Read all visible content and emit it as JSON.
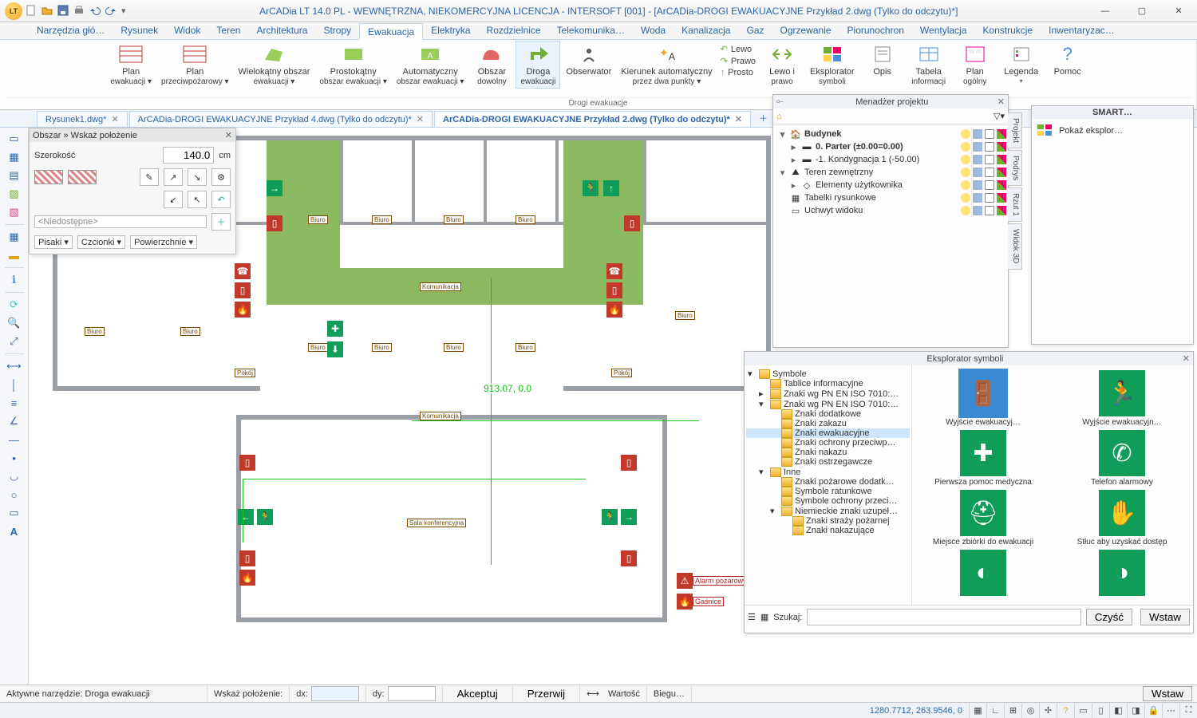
{
  "titlebar": {
    "title": "ArCADia LT 14.0 PL - WEWNĘTRZNA, NIEKOMERCYJNA LICENCJA - INTERSOFT [001] - [ArCADia-DROGI EWAKUACYJNE Przykład 2.dwg (Tylko do odczytu)*]"
  },
  "ribbon_tabs": [
    "Narzędzia głó…",
    "Rysunek",
    "Widok",
    "Teren",
    "Architektura",
    "Stropy",
    "Ewakuacja",
    "Elektryka",
    "Rozdzielnice",
    "Telekomunika…",
    "Woda",
    "Kanalizacja",
    "Gaz",
    "Ogrzewanie",
    "Piorunochron",
    "Wentylacja",
    "Konstrukcje",
    "Inwentaryzac…"
  ],
  "ribbon_active": "Ewakuacja",
  "ribbon": {
    "group_label": "Drogi ewakuacje",
    "buttons": {
      "plan_ewak": {
        "l1": "Plan",
        "l2": "ewakuacji ▾"
      },
      "plan_ppoz": {
        "l1": "Plan",
        "l2": "przeciwpożarowy ▾"
      },
      "wielok": {
        "l1": "Wielokątny obszar",
        "l2": "ewakuacji ▾"
      },
      "prostok": {
        "l1": "Prostokątny",
        "l2": "obszar ewakuacji ▾"
      },
      "auto": {
        "l1": "Automatyczny",
        "l2": "obszar ewakuacji ▾"
      },
      "dowolny": {
        "l1": "Obszar",
        "l2": "dowolny"
      },
      "droga": {
        "l1": "Droga",
        "l2": "ewakuacji"
      },
      "obser": {
        "l1": "Obserwator",
        "l2": ""
      },
      "kierunek": {
        "l1": "Kierunek automatyczny",
        "l2": "przez dwa punkty ▾"
      },
      "lewo": "Lewo",
      "prawo": "Prawo",
      "prosto": "Prosto",
      "lewoiprawo": {
        "l1": "Lewo i",
        "l2": "prawo"
      },
      "ekspl": {
        "l1": "Eksplorator",
        "l2": "symboli"
      },
      "opis": "Opis",
      "tabela": {
        "l1": "Tabela",
        "l2": "informacji"
      },
      "plan_og": {
        "l1": "Plan",
        "l2": "ogólny"
      },
      "legenda": {
        "l1": "Legenda",
        "l2": "▾"
      },
      "pomoc": "Pomoc"
    }
  },
  "doc_tabs": [
    {
      "label": "Rysunek1.dwg*",
      "active": false,
      "closable": true
    },
    {
      "label": "ArCADia-DROGI EWAKUACYJNE Przykład 4.dwg (Tylko do odczytu)*",
      "active": false,
      "closable": true
    },
    {
      "label": "ArCADia-DROGI EWAKUACYJNE Przykład 2.dwg (Tylko do odczytu)*",
      "active": true,
      "closable": true
    }
  ],
  "obszar_panel": {
    "title": "Obszar » Wskaż położenie",
    "width_label": "Szerokość",
    "width_value": "140.0",
    "width_unit": "cm",
    "none": "<Niedostępne>",
    "pisaki": "Pisaki",
    "czcionki": "Czcionki",
    "powierzchnie": "Powierzchnie"
  },
  "cursor_readout": "913.07, 0.0",
  "room_labels": [
    "Biuro",
    "Biuro",
    "Biuro",
    "Biuro",
    "Biuro",
    "Biuro",
    "Biuro",
    "Biuro",
    "Biuro",
    "Biuro",
    "Biuro",
    "Pokój",
    "Pokój",
    "Komunikacja",
    "Komunikacja",
    "Sala konferencyjna",
    "Alarm pożarowy",
    "Gaśnice"
  ],
  "proj_panel": {
    "title": "Menadżer projektu",
    "side_tabs": [
      "Projekt",
      "Podrys",
      "Rzut 1",
      "Widok 3D"
    ],
    "tree": [
      {
        "depth": 0,
        "tw": "▾",
        "icon": "building",
        "label": "Budynek",
        "bold": true,
        "badges": true
      },
      {
        "depth": 1,
        "tw": "▸",
        "icon": "level",
        "label": "0. Parter (±0.00=0.00)",
        "bold": true,
        "badges": true
      },
      {
        "depth": 1,
        "tw": "▸",
        "icon": "level",
        "label": "-1. Kondygnacja 1 (-50.00)",
        "bold": false,
        "badges": true
      },
      {
        "depth": 0,
        "tw": "▾",
        "icon": "terrain",
        "label": "Teren zewnętrzny",
        "bold": false,
        "badges": true
      },
      {
        "depth": 1,
        "tw": "▸",
        "icon": "dot",
        "label": "Elementy użytkownika",
        "bold": false,
        "badges": true
      },
      {
        "depth": 0,
        "tw": "",
        "icon": "table",
        "label": "Tabelki rysunkowe",
        "bold": false,
        "badges": true
      },
      {
        "depth": 0,
        "tw": "",
        "icon": "handle",
        "label": "Uchwyt widoku",
        "bold": false,
        "badges": true
      }
    ]
  },
  "smart_panel": {
    "title": "SMART…",
    "row": "Pokaż eksplor…"
  },
  "sym_panel": {
    "title": "Eksplorator symboli",
    "tree": [
      {
        "d": 0,
        "tw": "▾",
        "label": "Symbole"
      },
      {
        "d": 1,
        "tw": "",
        "label": "Tablice informacyjne"
      },
      {
        "d": 1,
        "tw": "▸",
        "label": "Znaki wg PN EN ISO 7010:…"
      },
      {
        "d": 1,
        "tw": "▾",
        "label": "Znaki wg PN EN ISO 7010:…"
      },
      {
        "d": 2,
        "tw": "",
        "label": "Znaki dodatkowe"
      },
      {
        "d": 2,
        "tw": "",
        "label": "Znaki zakazu"
      },
      {
        "d": 2,
        "tw": "",
        "label": "Znaki ewakuacyjne",
        "sel": true
      },
      {
        "d": 2,
        "tw": "",
        "label": "Znaki ochrony przeciwp…"
      },
      {
        "d": 2,
        "tw": "",
        "label": "Znaki nakazu"
      },
      {
        "d": 2,
        "tw": "",
        "label": "Znaki ostrzegawcze"
      },
      {
        "d": 1,
        "tw": "▾",
        "label": "Inne"
      },
      {
        "d": 2,
        "tw": "",
        "label": "Znaki pożarowe dodatk…"
      },
      {
        "d": 2,
        "tw": "",
        "label": "Symbole ratunkowe"
      },
      {
        "d": 2,
        "tw": "",
        "label": "Symbole ochrony przeci…"
      },
      {
        "d": 2,
        "tw": "▾",
        "label": "Niemieckie znaki uzupeł…"
      },
      {
        "d": 3,
        "tw": "",
        "label": "Znaki straży pożarnej"
      },
      {
        "d": 3,
        "tw": "",
        "label": "Znaki nakazujące"
      }
    ],
    "symbols": [
      {
        "glyph": "🚪",
        "label": "Wyjście ewakuacyj…",
        "sel": true
      },
      {
        "glyph": "🏃",
        "label": "Wyjście ewakuacyjn…"
      },
      {
        "glyph": "✚",
        "label": "Pierwsza pomoc medyczna"
      },
      {
        "glyph": "✆",
        "label": "Telefon alarmowy"
      },
      {
        "glyph": "⛑",
        "label": "Miejsce zbiórki do ewakuacji"
      },
      {
        "glyph": "✋",
        "label": "Stłuc aby uzyskać dostęp"
      },
      {
        "glyph": "◐",
        "label": ""
      },
      {
        "glyph": "◑",
        "label": ""
      }
    ],
    "search_label": "Szukaj:",
    "search_value": "",
    "clear": "Czyść",
    "insert": "Wstaw"
  },
  "cmdbar": {
    "active_tool": "Aktywne narzędzie: Droga ewakuacji",
    "pos_label": "Wskaż położenie:",
    "dx": "dx:",
    "dy": "dy:",
    "dx_val": "",
    "dy_val": "",
    "accept": "Akceptuj",
    "cancel": "Przerwij",
    "value": "Wartość",
    "bieg": "Biegu…"
  },
  "status": {
    "coords": "1280.7712, 263.9546, 0"
  },
  "colors": {
    "accent": "#2a64a8",
    "evac_green": "#8cb95f",
    "sign_green": "#0f9d58",
    "sign_red": "#c0392b",
    "ribbon_active_green": "#6fae2f"
  }
}
